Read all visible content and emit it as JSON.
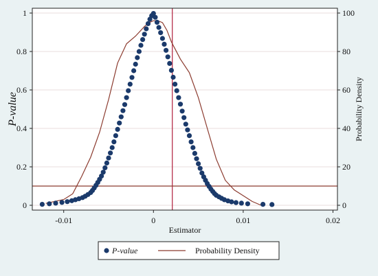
{
  "chart_data": {
    "type": "scatter",
    "xlabel": "Estimator",
    "ylabel_left": "P-value",
    "ylabel_right": "Probability Density",
    "xlim": [
      -0.0135,
      0.0205
    ],
    "ylim_left": [
      -0.025,
      1.025
    ],
    "ylim_right": [
      -2.5,
      102.5
    ],
    "x_ticks": [
      -0.01,
      0,
      0.01,
      0.02
    ],
    "x_tick_labels": [
      "-0.01",
      "0",
      "0.01",
      "0.02"
    ],
    "y_left_ticks": [
      0,
      0.2,
      0.4,
      0.6,
      0.8,
      1
    ],
    "y_left_tick_labels": [
      "0",
      "0.2",
      "0.4",
      "0.6",
      "0.8",
      "1"
    ],
    "y_right_ticks": [
      0,
      20,
      40,
      60,
      80,
      100
    ],
    "y_right_tick_labels": [
      "0",
      "20",
      "40",
      "60",
      "80",
      "100"
    ],
    "grid": "horizontal",
    "legend_position": "bottom",
    "reference_lines": {
      "vertical_x": 0.0021,
      "horizontal_p": 0.1
    },
    "series": [
      {
        "name": "P-value",
        "marker": "circle",
        "color": "#1b3a6b",
        "x": [
          -0.0124,
          -0.0116,
          -0.0109,
          -0.0102,
          -0.0096,
          -0.0091,
          -0.0087,
          -0.0083,
          -0.0079,
          -0.0076,
          -0.0073,
          -0.007,
          -0.0068,
          -0.0066,
          -0.0064,
          -0.0062,
          -0.006,
          -0.0058,
          -0.0056,
          -0.0054,
          -0.0052,
          -0.005,
          -0.0048,
          -0.0046,
          -0.0044,
          -0.0042,
          -0.004,
          -0.0038,
          -0.0036,
          -0.0034,
          -0.0032,
          -0.003,
          -0.0028,
          -0.0026,
          -0.0024,
          -0.0022,
          -0.002,
          -0.0018,
          -0.0016,
          -0.0014,
          -0.0012,
          -0.001,
          -0.0008,
          -0.0006,
          -0.0004,
          -0.0002,
          0.0,
          0.0002,
          0.0004,
          0.0006,
          0.0008,
          0.001,
          0.0012,
          0.0014,
          0.0016,
          0.0018,
          0.002,
          0.0022,
          0.0024,
          0.0026,
          0.0028,
          0.003,
          0.0032,
          0.0034,
          0.0036,
          0.0038,
          0.004,
          0.0042,
          0.0044,
          0.0046,
          0.0048,
          0.005,
          0.0052,
          0.0054,
          0.0056,
          0.0058,
          0.006,
          0.0062,
          0.0064,
          0.0066,
          0.0068,
          0.007,
          0.0073,
          0.0076,
          0.0079,
          0.0083,
          0.0087,
          0.0092,
          0.0098,
          0.0105,
          0.0122,
          0.0132
        ],
        "y": [
          0.005,
          0.008,
          0.011,
          0.015,
          0.019,
          0.024,
          0.029,
          0.034,
          0.04,
          0.047,
          0.056,
          0.066,
          0.077,
          0.09,
          0.104,
          0.119,
          0.135,
          0.152,
          0.172,
          0.195,
          0.22,
          0.246,
          0.272,
          0.3,
          0.33,
          0.362,
          0.395,
          0.428,
          0.46,
          0.492,
          0.524,
          0.56,
          0.596,
          0.63,
          0.665,
          0.7,
          0.734,
          0.768,
          0.8,
          0.832,
          0.862,
          0.89,
          0.918,
          0.945,
          0.968,
          0.986,
          0.998,
          0.978,
          0.952,
          0.925,
          0.898,
          0.868,
          0.838,
          0.806,
          0.772,
          0.738,
          0.702,
          0.666,
          0.63,
          0.596,
          0.56,
          0.526,
          0.49,
          0.456,
          0.422,
          0.392,
          0.362,
          0.33,
          0.3,
          0.27,
          0.242,
          0.216,
          0.192,
          0.168,
          0.148,
          0.13,
          0.113,
          0.098,
          0.084,
          0.072,
          0.061,
          0.052,
          0.044,
          0.036,
          0.029,
          0.023,
          0.018,
          0.014,
          0.011,
          0.008,
          0.005,
          0.004
        ]
      },
      {
        "name": "Probability Density",
        "marker": "line",
        "color": "#8b3a2e",
        "x": [
          -0.012,
          -0.01,
          -0.009,
          -0.008,
          -0.007,
          -0.006,
          -0.005,
          -0.004,
          -0.003,
          -0.002,
          -0.001,
          -0.0005,
          0.0,
          0.0005,
          0.001,
          0.0015,
          0.002,
          0.003,
          0.004,
          0.005,
          0.006,
          0.007,
          0.008,
          0.009,
          0.01,
          0.011,
          0.012
        ],
        "y": [
          1,
          3,
          6,
          15,
          25,
          38,
          55,
          74,
          84,
          88,
          93,
          95,
          96,
          96,
          95,
          91,
          85,
          76,
          69,
          56,
          40,
          24,
          13,
          8,
          5,
          2,
          0
        ]
      }
    ]
  }
}
